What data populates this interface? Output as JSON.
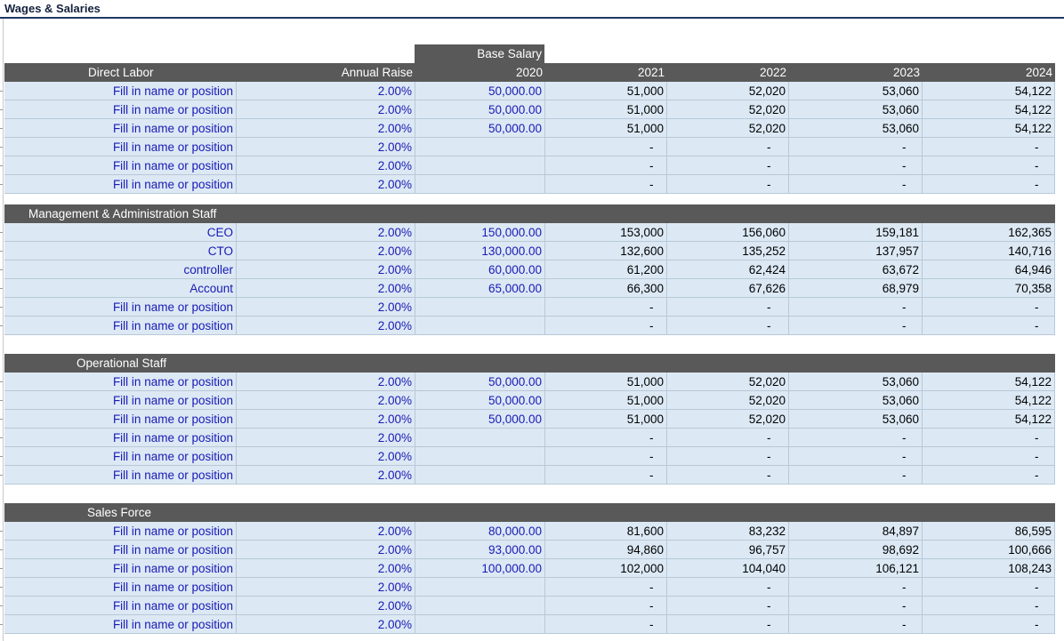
{
  "sheet": {
    "title": "Wages & Salaries"
  },
  "columns": {
    "base_salary_label": "Base Salary",
    "annual_raise": "Annual Raise",
    "years": [
      "2020",
      "2021",
      "2022",
      "2023",
      "2024"
    ]
  },
  "sections": [
    {
      "title": "Direct Labor",
      "rows": [
        {
          "name": "Fill in name or position",
          "raise": "2.00%",
          "base": "50,000.00",
          "y2021": "51,000",
          "y2022": "52,020",
          "y2023": "53,060",
          "y2024": "54,122"
        },
        {
          "name": "Fill in name or position",
          "raise": "2.00%",
          "base": "50,000.00",
          "y2021": "51,000",
          "y2022": "52,020",
          "y2023": "53,060",
          "y2024": "54,122"
        },
        {
          "name": "Fill in name or position",
          "raise": "2.00%",
          "base": "50,000.00",
          "y2021": "51,000",
          "y2022": "52,020",
          "y2023": "53,060",
          "y2024": "54,122"
        },
        {
          "name": "Fill in name or position",
          "raise": "2.00%",
          "base": "",
          "y2021": "-",
          "y2022": "-",
          "y2023": "-",
          "y2024": "-"
        },
        {
          "name": "Fill in name or position",
          "raise": "2.00%",
          "base": "",
          "y2021": "-",
          "y2022": "-",
          "y2023": "-",
          "y2024": "-"
        },
        {
          "name": "Fill in name or position",
          "raise": "2.00%",
          "base": "",
          "y2021": "-",
          "y2022": "-",
          "y2023": "-",
          "y2024": "-"
        }
      ]
    },
    {
      "title": "Management & Administration Staff",
      "rows": [
        {
          "name": "CEO",
          "raise": "2.00%",
          "base": "150,000.00",
          "y2021": "153,000",
          "y2022": "156,060",
          "y2023": "159,181",
          "y2024": "162,365"
        },
        {
          "name": "CTO",
          "raise": "2.00%",
          "base": "130,000.00",
          "y2021": "132,600",
          "y2022": "135,252",
          "y2023": "137,957",
          "y2024": "140,716"
        },
        {
          "name": "controller",
          "raise": "2.00%",
          "base": "60,000.00",
          "y2021": "61,200",
          "y2022": "62,424",
          "y2023": "63,672",
          "y2024": "64,946"
        },
        {
          "name": "Account",
          "raise": "2.00%",
          "base": "65,000.00",
          "y2021": "66,300",
          "y2022": "67,626",
          "y2023": "68,979",
          "y2024": "70,358"
        },
        {
          "name": "Fill in name or position",
          "raise": "2.00%",
          "base": "",
          "y2021": "-",
          "y2022": "-",
          "y2023": "-",
          "y2024": "-"
        },
        {
          "name": "Fill in name or position",
          "raise": "2.00%",
          "base": "",
          "y2021": "-",
          "y2022": "-",
          "y2023": "-",
          "y2024": "-"
        }
      ]
    },
    {
      "title": "Operational Staff",
      "rows": [
        {
          "name": "Fill in name or position",
          "raise": "2.00%",
          "base": "50,000.00",
          "y2021": "51,000",
          "y2022": "52,020",
          "y2023": "53,060",
          "y2024": "54,122"
        },
        {
          "name": "Fill in name or position",
          "raise": "2.00%",
          "base": "50,000.00",
          "y2021": "51,000",
          "y2022": "52,020",
          "y2023": "53,060",
          "y2024": "54,122"
        },
        {
          "name": "Fill in name or position",
          "raise": "2.00%",
          "base": "50,000.00",
          "y2021": "51,000",
          "y2022": "52,020",
          "y2023": "53,060",
          "y2024": "54,122"
        },
        {
          "name": "Fill in name or position",
          "raise": "2.00%",
          "base": "",
          "y2021": "-",
          "y2022": "-",
          "y2023": "-",
          "y2024": "-"
        },
        {
          "name": "Fill in name or position",
          "raise": "2.00%",
          "base": "",
          "y2021": "-",
          "y2022": "-",
          "y2023": "-",
          "y2024": "-"
        },
        {
          "name": "Fill in name or position",
          "raise": "2.00%",
          "base": "",
          "y2021": "-",
          "y2022": "-",
          "y2023": "-",
          "y2024": "-"
        }
      ]
    },
    {
      "title": "Sales Force",
      "rows": [
        {
          "name": "Fill in name or position",
          "raise": "2.00%",
          "base": "80,000.00",
          "y2021": "81,600",
          "y2022": "83,232",
          "y2023": "84,897",
          "y2024": "86,595"
        },
        {
          "name": "Fill in name or position",
          "raise": "2.00%",
          "base": "93,000.00",
          "y2021": "94,860",
          "y2022": "96,757",
          "y2023": "98,692",
          "y2024": "100,666"
        },
        {
          "name": "Fill in name or position",
          "raise": "2.00%",
          "base": "100,000.00",
          "y2021": "102,000",
          "y2022": "104,040",
          "y2023": "106,121",
          "y2024": "108,243"
        },
        {
          "name": "Fill in name or position",
          "raise": "2.00%",
          "base": "",
          "y2021": "-",
          "y2022": "-",
          "y2023": "-",
          "y2024": "-"
        },
        {
          "name": "Fill in name or position",
          "raise": "2.00%",
          "base": "",
          "y2021": "-",
          "y2022": "-",
          "y2023": "-",
          "y2024": "-"
        },
        {
          "name": "Fill in name or position",
          "raise": "2.00%",
          "base": "",
          "y2021": "-",
          "y2022": "-",
          "y2023": "-",
          "y2024": "-"
        }
      ]
    }
  ],
  "colors": {
    "header_bg": "#595959",
    "row_bg": "#dce9f5",
    "input_text": "#1a1ab4",
    "title_rule": "#1f3864"
  }
}
